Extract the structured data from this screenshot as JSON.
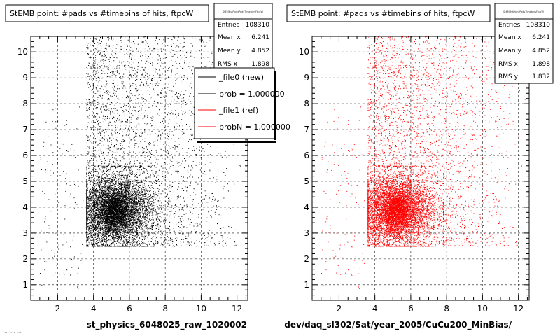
{
  "chart_data": [
    {
      "type": "scatter",
      "title": "StEMB point: #pads vs #timebins of hits, ftpcW",
      "xlabel": "st_physics_6048025_raw_1020002",
      "ylabel": "",
      "xlim": [
        0.5,
        12.6
      ],
      "ylim": [
        0.4,
        10.6
      ],
      "xticks": [
        2,
        4,
        6,
        8,
        10,
        12
      ],
      "yticks": [
        1,
        2,
        3,
        4,
        5,
        6,
        7,
        8,
        9,
        10
      ],
      "grid": true,
      "marker_color": "#000000",
      "stats": {
        "name": "StEMBstPointPadsTimebinsFtpcW",
        "rows": [
          {
            "label": "Entries",
            "value": "108310"
          },
          {
            "label": "Mean x",
            "value": "6.241"
          },
          {
            "label": "Mean y",
            "value": "4.852"
          },
          {
            "label": "RMS x",
            "value": "1.898"
          },
          {
            "label": "RMS y",
            "value": "1.832"
          }
        ]
      },
      "legend": {
        "position": "top-right",
        "entries": [
          {
            "label": "_file0 (new)",
            "color": "#000000"
          },
          {
            "label": "prob = 1.000000",
            "color": "#000000"
          },
          {
            "label": "_file1 (ref)",
            "color": "#ff0000"
          },
          {
            "label": "probN = 1.000000",
            "color": "#ff0000"
          }
        ]
      },
      "density_model": {
        "x_range": [
          3.6,
          12.6
        ],
        "y_range": [
          2.5,
          10.6
        ],
        "dense_core": {
          "x": [
            3.6,
            7.8
          ],
          "y": [
            2.5,
            5.6
          ]
        },
        "peak": {
          "x": 5.2,
          "y": 3.9
        },
        "outlier_region": {
          "x": [
            1.0,
            3.6
          ],
          "y": [
            0.8,
            8.0
          ]
        }
      }
    },
    {
      "type": "scatter",
      "title": "StEMB point: #pads vs #timebins of hits, ftpcW",
      "xlabel": "dev/daq_sl302/Sat/year_2005/CuCu200_MinBias/",
      "ylabel": "",
      "xlim": [
        0.5,
        12.6
      ],
      "ylim": [
        0.4,
        10.6
      ],
      "xticks": [
        2,
        4,
        6,
        8,
        10,
        12
      ],
      "yticks": [
        1,
        2,
        3,
        4,
        5,
        6,
        7,
        8,
        9,
        10
      ],
      "grid": true,
      "marker_color": "#ff0000",
      "stats": {
        "name": "StEMBstPointPadsTimebinsFtpcW",
        "rows": [
          {
            "label": "Entries",
            "value": "108310"
          },
          {
            "label": "Mean x",
            "value": "6.241"
          },
          {
            "label": "Mean y",
            "value": "4.852"
          },
          {
            "label": "RMS x",
            "value": "1.898"
          },
          {
            "label": "RMS y",
            "value": "1.832"
          }
        ]
      },
      "density_model": {
        "x_range": [
          3.6,
          12.6
        ],
        "y_range": [
          2.5,
          10.6
        ],
        "dense_core": {
          "x": [
            3.6,
            7.8
          ],
          "y": [
            2.5,
            5.6
          ]
        },
        "peak": {
          "x": 5.2,
          "y": 3.9
        },
        "outlier_region": {
          "x": [
            1.0,
            3.6
          ],
          "y": [
            0.8,
            8.0
          ]
        }
      }
    }
  ],
  "footer": "... ... ..."
}
